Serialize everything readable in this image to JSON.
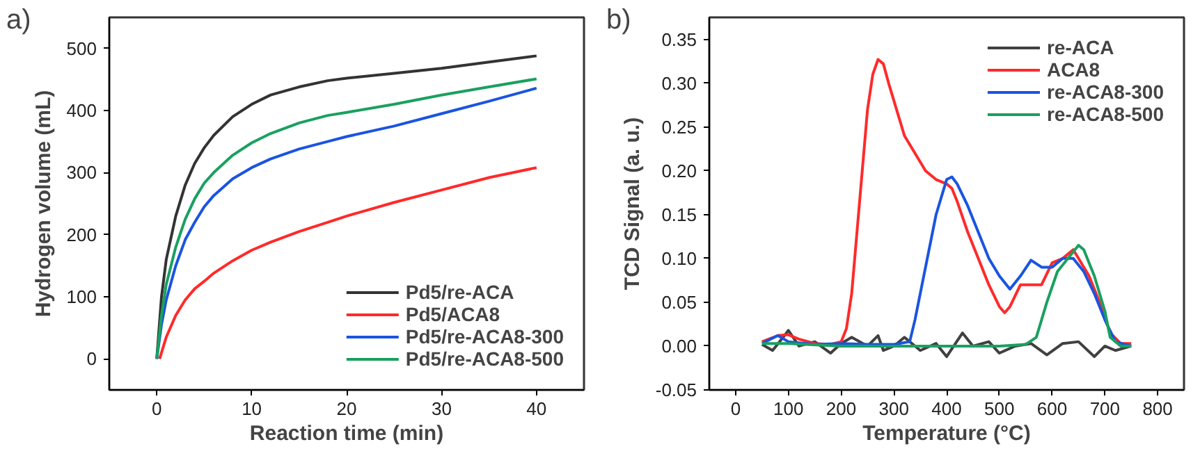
{
  "chart_data": [
    {
      "type": "line",
      "annotations": [
        "a)"
      ],
      "xlabel": "Reaction time (min)",
      "ylabel": "Hydrogen volume (mL)",
      "xlim": [
        -5,
        45
      ],
      "ylim": [
        -50,
        550
      ],
      "xticks": [
        0,
        10,
        20,
        30,
        40
      ],
      "yticks": [
        0,
        100,
        200,
        300,
        400,
        500
      ],
      "grid": false,
      "legend": "bottom right",
      "marker": "none",
      "line_style": "solid",
      "series": [
        {
          "name": "Pd5/re-ACA",
          "color": "#333333",
          "x": [
            0,
            0.5,
            1,
            2,
            3,
            4,
            5,
            6,
            8,
            10,
            12,
            15,
            18,
            20,
            25,
            30,
            35,
            40
          ],
          "values": [
            0,
            100,
            160,
            230,
            280,
            315,
            340,
            360,
            390,
            410,
            425,
            438,
            448,
            452,
            460,
            468,
            478,
            488
          ]
        },
        {
          "name": "Pd5/ACA8",
          "color": "#ff2a2a",
          "x": [
            0.3,
            1,
            2,
            3,
            4,
            5,
            6,
            8,
            10,
            12,
            15,
            18,
            20,
            25,
            30,
            35,
            40
          ],
          "values": [
            0,
            35,
            70,
            95,
            113,
            125,
            138,
            158,
            175,
            188,
            205,
            220,
            230,
            252,
            272,
            292,
            308
          ]
        },
        {
          "name": "Pd5/re-ACA8-300",
          "color": "#1a54e0",
          "x": [
            0,
            0.5,
            1,
            2,
            3,
            4,
            5,
            6,
            8,
            10,
            12,
            15,
            18,
            20,
            25,
            30,
            35,
            40
          ],
          "values": [
            0,
            55,
            95,
            150,
            192,
            220,
            245,
            263,
            290,
            308,
            322,
            338,
            350,
            358,
            375,
            395,
            415,
            436
          ]
        },
        {
          "name": "Pd5/re-ACA8-500",
          "color": "#1aa060",
          "x": [
            0,
            0.5,
            1,
            2,
            3,
            4,
            5,
            6,
            8,
            10,
            12,
            15,
            18,
            20,
            25,
            30,
            35,
            40
          ],
          "values": [
            0,
            70,
            120,
            180,
            225,
            258,
            283,
            300,
            328,
            348,
            363,
            380,
            392,
            397,
            410,
            425,
            438,
            451
          ]
        }
      ]
    },
    {
      "type": "line",
      "annotations": [
        "b)"
      ],
      "xlabel": "Temperature (°C)",
      "ylabel": "TCD Signal (a. u.)",
      "xlim": [
        -50,
        850
      ],
      "ylim": [
        -0.05,
        0.375
      ],
      "xticks": [
        0,
        100,
        200,
        300,
        400,
        500,
        600,
        700,
        800
      ],
      "yticks": [
        {
          "value": -0.05,
          "label": "-0.05"
        },
        {
          "value": 0,
          "label": "0.00"
        },
        {
          "value": 0.05,
          "label": "0.05"
        },
        {
          "value": 0.1,
          "label": "0.10"
        },
        {
          "value": 0.15,
          "label": "0.15"
        },
        {
          "value": 0.2,
          "label": "0.20"
        },
        {
          "value": 0.25,
          "label": "0.25"
        },
        {
          "value": 0.3,
          "label": "0.30"
        },
        {
          "value": 0.35,
          "label": "0.35"
        }
      ],
      "grid": false,
      "legend": "top right",
      "marker": "none",
      "line_style": "solid",
      "series": [
        {
          "name": "re-ACA",
          "color": "#404040",
          "x": [
            50,
            70,
            90,
            100,
            120,
            150,
            180,
            200,
            220,
            250,
            270,
            280,
            300,
            320,
            350,
            380,
            400,
            430,
            450,
            480,
            500,
            530,
            560,
            590,
            620,
            650,
            680,
            700,
            720,
            750
          ],
          "values": [
            0.002,
            -0.005,
            0.01,
            0.018,
            0.0,
            0.005,
            -0.008,
            0.003,
            0.01,
            0.0,
            0.012,
            -0.005,
            0.0,
            0.01,
            -0.005,
            0.003,
            -0.012,
            0.015,
            0.0,
            0.005,
            -0.008,
            0.0,
            0.003,
            -0.01,
            0.003,
            0.005,
            -0.012,
            0.0,
            -0.005,
            0.0
          ]
        },
        {
          "name": "ACA8",
          "color": "#ff2a2a",
          "x": [
            50,
            80,
            100,
            120,
            150,
            180,
            200,
            210,
            220,
            230,
            240,
            250,
            260,
            270,
            280,
            290,
            300,
            320,
            340,
            360,
            380,
            400,
            410,
            420,
            440,
            460,
            480,
            500,
            510,
            520,
            540,
            560,
            580,
            600,
            620,
            640,
            650,
            670,
            690,
            710,
            730,
            750
          ],
          "values": [
            0.005,
            0.012,
            0.013,
            0.008,
            0.003,
            0.002,
            0.005,
            0.02,
            0.06,
            0.13,
            0.2,
            0.27,
            0.31,
            0.327,
            0.322,
            0.3,
            0.28,
            0.24,
            0.22,
            0.2,
            0.19,
            0.185,
            0.18,
            0.165,
            0.13,
            0.1,
            0.07,
            0.045,
            0.038,
            0.045,
            0.07,
            0.07,
            0.07,
            0.095,
            0.1,
            0.11,
            0.1,
            0.08,
            0.05,
            0.015,
            0.003,
            0.003
          ]
        },
        {
          "name": "re-ACA8-300",
          "color": "#1a54e0",
          "x": [
            50,
            80,
            100,
            150,
            200,
            250,
            300,
            330,
            340,
            360,
            380,
            400,
            410,
            420,
            440,
            460,
            480,
            500,
            520,
            540,
            560,
            580,
            600,
            620,
            640,
            660,
            680,
            700,
            720,
            750
          ],
          "values": [
            0.003,
            0.012,
            0.005,
            0.002,
            0.003,
            0.002,
            0.002,
            0.005,
            0.03,
            0.09,
            0.15,
            0.19,
            0.193,
            0.185,
            0.16,
            0.13,
            0.1,
            0.08,
            0.065,
            0.08,
            0.098,
            0.09,
            0.09,
            0.1,
            0.1,
            0.085,
            0.06,
            0.03,
            0.005,
            0.0
          ]
        },
        {
          "name": "re-ACA8-500",
          "color": "#1aa060",
          "x": [
            50,
            100,
            200,
            300,
            400,
            500,
            550,
            570,
            590,
            610,
            630,
            650,
            660,
            680,
            700,
            710,
            730,
            750
          ],
          "values": [
            0.003,
            0.003,
            0.0,
            0.0,
            0.0,
            0.0,
            0.002,
            0.01,
            0.05,
            0.085,
            0.1,
            0.115,
            0.11,
            0.08,
            0.04,
            0.01,
            0.0,
            0.0
          ]
        }
      ]
    }
  ]
}
